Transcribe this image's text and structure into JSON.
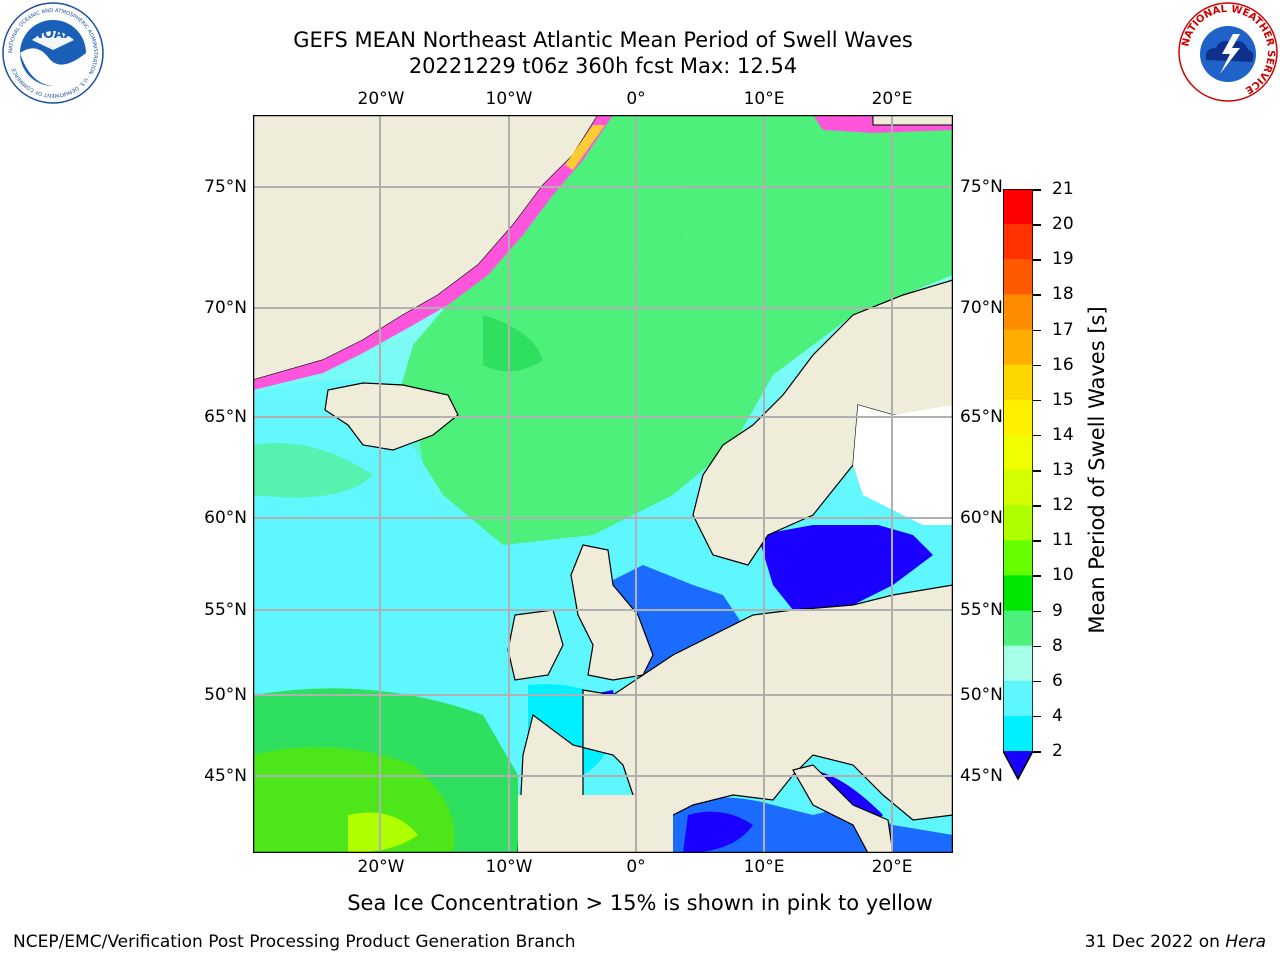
{
  "title_line1": "GEFS MEAN Northeast Atlantic Mean Period of Swell Waves",
  "title_line2": "20221229 t06z 360h fcst   Max: 12.54",
  "lon_labels": [
    "20°W",
    "10°W",
    "0°",
    "10°E",
    "20°E"
  ],
  "lat_labels": [
    "75°N",
    "70°N",
    "65°N",
    "60°N",
    "55°N",
    "50°N",
    "45°N"
  ],
  "colorbar": {
    "label": "Mean Period of Swell Waves [s]",
    "ticks": [
      "21",
      "20",
      "19",
      "18",
      "17",
      "16",
      "15",
      "14",
      "13",
      "12",
      "11",
      "10",
      "9",
      "8",
      "6",
      "4",
      "2"
    ],
    "colors": [
      "#ff0000",
      "#ff3300",
      "#ff5a00",
      "#ff8c00",
      "#ffae00",
      "#ffd700",
      "#fff000",
      "#f0ff00",
      "#d4ff00",
      "#b0ff00",
      "#66ff00",
      "#00e600",
      "#4cf07a",
      "#a6ffe8",
      "#5ff7ff",
      "#00f0ff",
      "#0080ff"
    ],
    "extend_color": "#1a00ff"
  },
  "legend_colors": {
    "land": "#efedda",
    "ice_pink": "#ff55dd",
    "ice_yellow": "#ffcc33",
    "very_short": "#1a00ff",
    "short": "#1b6bff"
  },
  "footnote": "Sea Ice Concentration > 15% is shown in pink to yellow",
  "credit_left": "NCEP/EMC/Verification Post Processing Product Generation Branch",
  "credit_date": "31 Dec 2022 on ",
  "credit_machine": "Hera",
  "logos": {
    "noaa_text": "NOAA",
    "noaa_ring": "NATIONAL OCEANIC AND ATMOSPHERIC ADMINISTRATION · U.S. DEPARTMENT OF COMMERCE",
    "nws_ring": "NATIONAL WEATHER SERVICE"
  }
}
